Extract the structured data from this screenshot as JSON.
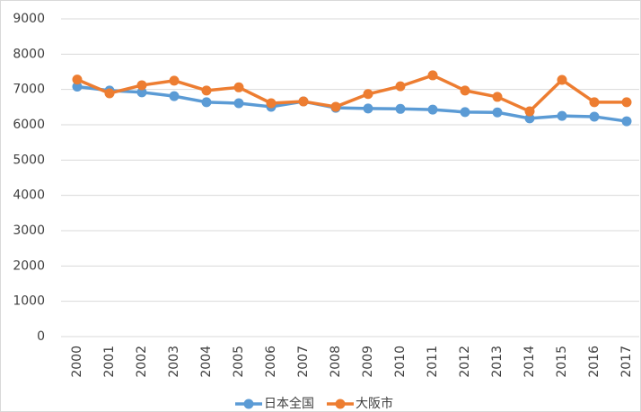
{
  "chart_data": {
    "type": "line",
    "categories": [
      "2000",
      "2001",
      "2002",
      "2003",
      "2004",
      "2005",
      "2006",
      "2007",
      "2008",
      "2009",
      "2010",
      "2011",
      "2012",
      "2013",
      "2014",
      "2015",
      "2016",
      "2017"
    ],
    "series": [
      {
        "name": "日本全国",
        "color": "#5b9bd5",
        "values": [
          7080,
          6970,
          6920,
          6810,
          6640,
          6610,
          6510,
          6660,
          6480,
          6460,
          6450,
          6430,
          6360,
          6350,
          6180,
          6250,
          6230,
          6100
        ]
      },
      {
        "name": "大阪市",
        "color": "#ed7d31",
        "values": [
          7280,
          6890,
          7120,
          7250,
          6970,
          7060,
          6610,
          6660,
          6510,
          6870,
          7090,
          7400,
          6970,
          6790,
          6380,
          7270,
          6640,
          6640
        ]
      }
    ],
    "ylim": [
      0,
      9000
    ],
    "yticks": [
      0,
      1000,
      2000,
      3000,
      4000,
      5000,
      6000,
      7000,
      8000,
      9000
    ],
    "grid": true,
    "legend": "bottom"
  }
}
